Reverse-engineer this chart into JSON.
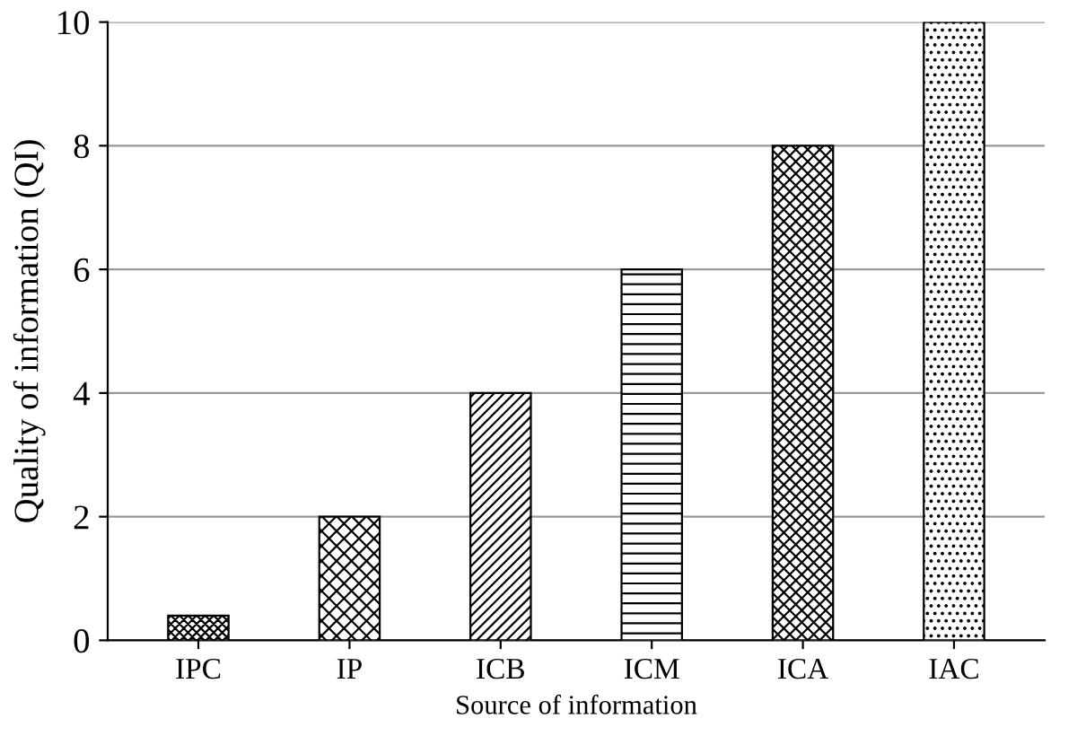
{
  "chart_data": {
    "type": "bar",
    "xlabel": "Source of information",
    "ylabel": "Quality of information (QI)",
    "categories": [
      "IPC",
      "IP",
      "ICB",
      "ICM",
      "ICA",
      "IAC"
    ],
    "values": [
      0.4,
      2,
      4,
      6,
      8,
      10
    ],
    "color": "#000000",
    "ylim": [
      0,
      10
    ],
    "yticks": [
      0,
      2,
      4,
      6,
      8,
      10
    ],
    "grid": "y"
  }
}
